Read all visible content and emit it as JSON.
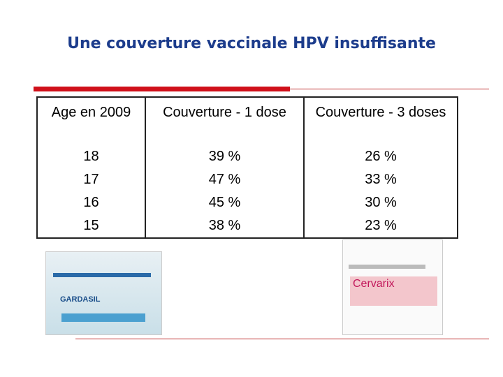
{
  "header": {
    "title": "Une couverture vaccinale HPV insuffisante"
  },
  "table": {
    "columns": [
      "Age en 2009",
      "Couverture - 1 dose",
      "Couverture - 3 doses"
    ],
    "rows": [
      [
        "18",
        "39 %",
        "26 %"
      ],
      [
        "17",
        "47 %",
        "33 %"
      ],
      [
        "16",
        "45 %",
        "30 %"
      ],
      [
        "15",
        "38 %",
        "23 %"
      ]
    ]
  },
  "images": [
    {
      "label": "GARDASIL"
    },
    {
      "label": "Cervarix"
    }
  ]
}
